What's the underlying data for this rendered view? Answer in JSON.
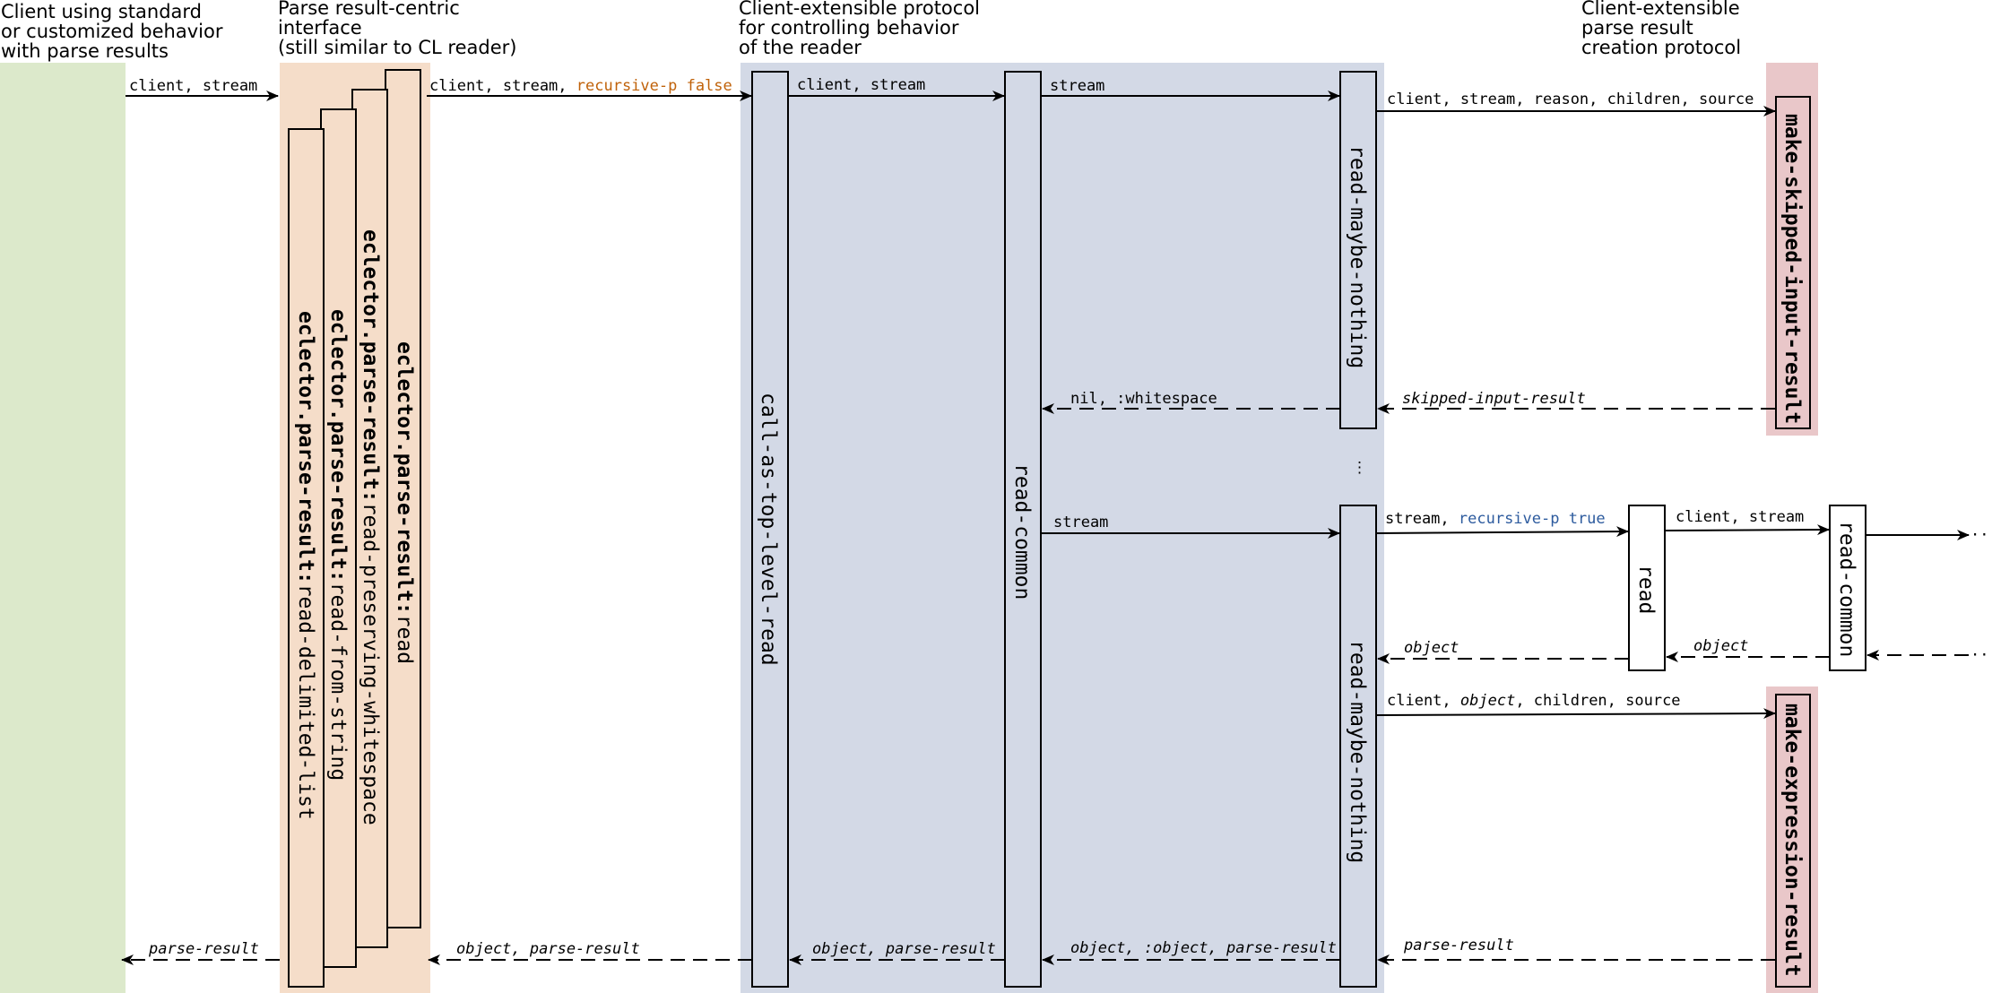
{
  "colors": {
    "client_band": "#dce9cb",
    "parse_band": "#f5ddc9",
    "protocol_band": "#d3d9e6",
    "creation_box": "#e9c7c9",
    "recursive_false": "#c0620a",
    "recursive_true": "#2d5b9e"
  },
  "headers": {
    "client_line1": "Client using standard",
    "client_line2": "or customized behavior",
    "client_line3": "with parse results",
    "parse_line1": "Parse result-centric",
    "parse_line2": "interface",
    "parse_line3": "(still similar to CL reader)",
    "protocol_line1": "Client-extensible protocol",
    "protocol_line2": "for controlling behavior",
    "protocol_line3": "of the reader",
    "creation_line1": "Client-extensible",
    "creation_line2": "parse result",
    "creation_line3": "creation protocol"
  },
  "functions": {
    "read_prefix": "eclector.parse-result:",
    "read_name": "read",
    "preserving_prefix": "eclector.parse-result:",
    "preserving_name": "read-preserving-whitespace",
    "from_string_prefix": "eclector.parse-result:",
    "from_string_name": "read-from-string",
    "delimited_prefix": "eclector.parse-result:",
    "delimited_name": "read-delimited-list",
    "call_top_level": "call-as-top-level-read",
    "read_common": "read-common",
    "read_maybe_nothing_1": "read-maybe-nothing",
    "read_maybe_nothing_2": "read-maybe-nothing",
    "make_skipped": "make-skipped-input-result",
    "make_expression": "make-expression-result",
    "read": "read",
    "read_common_2": "read-common"
  },
  "arrows": {
    "a1": "client, stream",
    "a2_plain": "client, stream, ",
    "a2_colored": "recursive-p false",
    "a3": "client, stream",
    "a4": "stream",
    "a5": "client, stream, reason, children, source",
    "a6": "skipped-input-result",
    "a7": "nil, :whitespace",
    "ellipsis": "⋮",
    "a8": "stream",
    "a9_plain": "stream, ",
    "a9_colored": "recursive-p true",
    "a10": "client, stream",
    "a10_more": "···",
    "a11": "object",
    "a12": "object",
    "a13_part1": "client, ",
    "a13_part2": "object",
    "a13_part3": ", children, source",
    "a14": "parse-result",
    "a15": "object, :object, parse-result",
    "a16": "object, parse-result",
    "a17": "object, parse-result",
    "a18": "parse-result"
  }
}
